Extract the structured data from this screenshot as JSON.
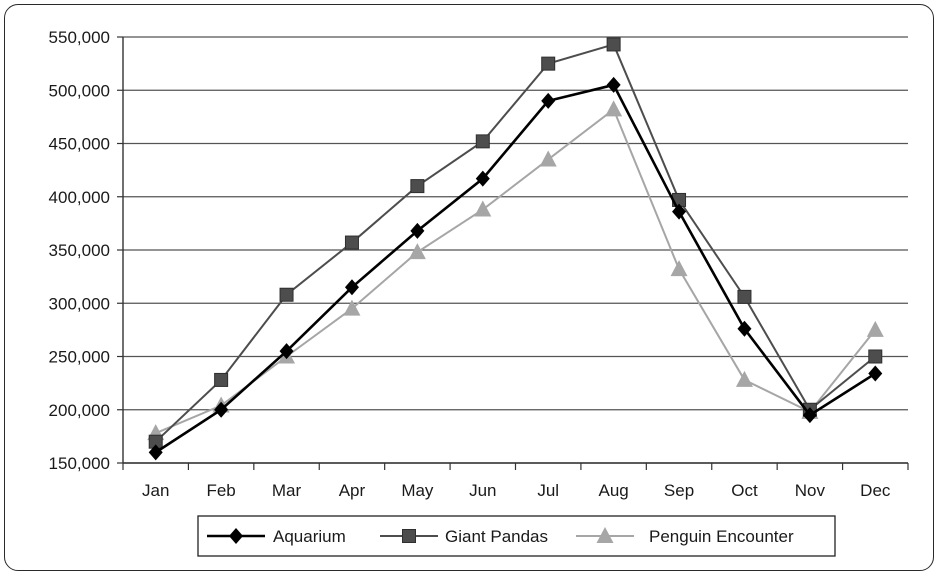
{
  "chart_data": {
    "type": "line",
    "title": "",
    "xlabel": "",
    "ylabel": "",
    "categories": [
      "Jan",
      "Feb",
      "Mar",
      "Apr",
      "May",
      "Jun",
      "Jul",
      "Aug",
      "Sep",
      "Oct",
      "Nov",
      "Dec"
    ],
    "ylim": [
      150000,
      550000
    ],
    "yticks": [
      150000,
      200000,
      250000,
      300000,
      350000,
      400000,
      450000,
      500000,
      550000
    ],
    "ytick_labels": [
      "150,000",
      "200,000",
      "250,000",
      "300,000",
      "350,000",
      "400,000",
      "450,000",
      "500,000",
      "550,000"
    ],
    "grid": true,
    "legend_position": "bottom",
    "series": [
      {
        "name": "Aquarium",
        "marker": "diamond",
        "color": "#000000",
        "values": [
          160000,
          200000,
          255000,
          315000,
          368000,
          417000,
          490000,
          505000,
          386000,
          276000,
          195000,
          234000
        ]
      },
      {
        "name": "Giant Pandas",
        "marker": "square",
        "color": "#4d4d4d",
        "values": [
          170000,
          228000,
          308000,
          357000,
          410000,
          452000,
          525000,
          543000,
          397000,
          306000,
          200000,
          250000
        ]
      },
      {
        "name": "Penguin Encounter",
        "marker": "triangle",
        "color": "#a6a6a6",
        "values": [
          178000,
          204000,
          250000,
          295000,
          348000,
          388000,
          435000,
          482000,
          332000,
          228000,
          198000,
          275000
        ]
      }
    ]
  }
}
